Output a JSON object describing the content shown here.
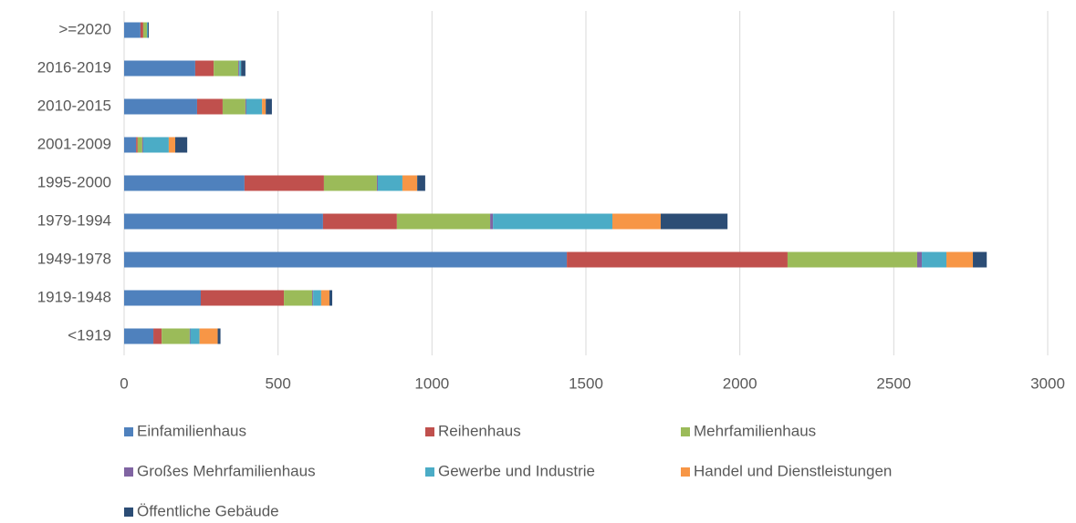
{
  "chart_data": {
    "type": "bar",
    "orientation": "horizontal",
    "stacked": true,
    "grid": true,
    "legend": "bottom",
    "categories": [
      "<1919",
      "1919-1948",
      "1949-1978",
      "1979-1994",
      "1995-2000",
      "2001-2009",
      "2010-2015",
      "2016-2019",
      ">=2020"
    ],
    "series": [
      {
        "name": "Einfamilienhaus",
        "color": "#4f81bd",
        "values": [
          95,
          249,
          1438,
          646,
          391,
          39,
          237,
          231,
          53
        ]
      },
      {
        "name": "Reihenhaus",
        "color": "#c0504d",
        "values": [
          27,
          270,
          717,
          240,
          258,
          5,
          83,
          60,
          9
        ]
      },
      {
        "name": "Mehrfamilienhaus",
        "color": "#9bbb59",
        "values": [
          91,
          92,
          421,
          303,
          172,
          15,
          74,
          80,
          12
        ]
      },
      {
        "name": "Großes Mehrfamilienhaus",
        "color": "#8064a2",
        "values": [
          2,
          3,
          15,
          9,
          3,
          3,
          3,
          3,
          0
        ]
      },
      {
        "name": "Gewerbe und Industrie",
        "color": "#4bacc6",
        "values": [
          30,
          26,
          80,
          388,
          80,
          83,
          51,
          6,
          3
        ]
      },
      {
        "name": "Handel und Dienstleistungen",
        "color": "#f79646",
        "values": [
          59,
          27,
          86,
          157,
          48,
          21,
          12,
          0,
          0
        ]
      },
      {
        "name": "Öffentliche Gebäude",
        "color": "#2c4d75",
        "values": [
          9,
          9,
          45,
          217,
          26,
          39,
          20,
          14,
          3
        ]
      }
    ],
    "xlim": [
      0,
      3000
    ],
    "xticks": [
      0,
      500,
      1000,
      1500,
      2000,
      2500,
      3000
    ]
  }
}
